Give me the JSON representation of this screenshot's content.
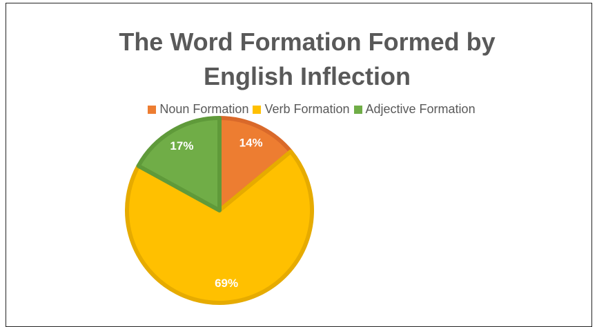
{
  "chart_data": {
    "type": "pie",
    "title": "The Word Formation Formed by English Inflection",
    "categories": [
      "Noun Formation",
      "Verb Formation",
      "Adjective Formation"
    ],
    "values": [
      14,
      69,
      17
    ],
    "value_labels": [
      "14%",
      "69%",
      "17%"
    ],
    "colors": [
      "#ed7d31",
      "#ffc000",
      "#70ad47"
    ],
    "stroke_colors": [
      "#d9692a",
      "#e6ab00",
      "#5f9a3a"
    ],
    "legend": "top"
  }
}
